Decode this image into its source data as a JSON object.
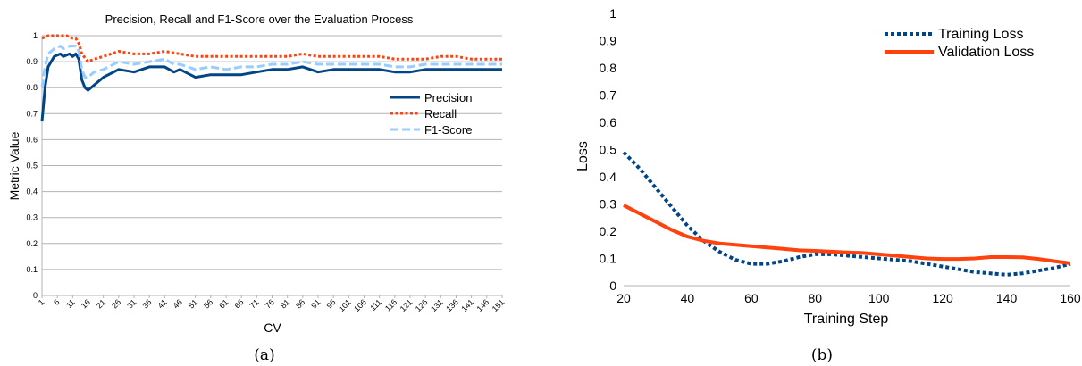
{
  "chart_data": [
    {
      "type": "line",
      "title": "Precision, Recall and F1-Score over the Evaluation Process",
      "xlabel": "CV",
      "ylabel": "Metric Value",
      "ylim": [
        0,
        1
      ],
      "yticks": [
        "0",
        "0.1",
        "0.2",
        "0.3",
        "0.4",
        "0.5",
        "0.6",
        "0.7",
        "0.8",
        "0.9",
        "1"
      ],
      "x_min": 1,
      "x_max": 151,
      "xtick_values": [
        1,
        6,
        11,
        16,
        21,
        26,
        31,
        36,
        41,
        46,
        51,
        56,
        61,
        66,
        71,
        76,
        81,
        86,
        91,
        96,
        101,
        106,
        111,
        116,
        121,
        126,
        131,
        136,
        141,
        146,
        151
      ],
      "grid": "horizontal",
      "legend_position": "right",
      "caption": "(a)",
      "series": [
        {
          "name": "Precision",
          "color": "#004586",
          "style": "solid",
          "points": [
            [
              1,
              0.67
            ],
            [
              2,
              0.8
            ],
            [
              3,
              0.88
            ],
            [
              5,
              0.92
            ],
            [
              7,
              0.93
            ],
            [
              8,
              0.92
            ],
            [
              10,
              0.93
            ],
            [
              11,
              0.92
            ],
            [
              12,
              0.93
            ],
            [
              13,
              0.91
            ],
            [
              14,
              0.83
            ],
            [
              15,
              0.8
            ],
            [
              16,
              0.79
            ],
            [
              18,
              0.81
            ],
            [
              21,
              0.84
            ],
            [
              26,
              0.87
            ],
            [
              31,
              0.86
            ],
            [
              36,
              0.88
            ],
            [
              41,
              0.88
            ],
            [
              44,
              0.86
            ],
            [
              46,
              0.87
            ],
            [
              51,
              0.84
            ],
            [
              56,
              0.85
            ],
            [
              61,
              0.85
            ],
            [
              66,
              0.85
            ],
            [
              71,
              0.86
            ],
            [
              76,
              0.87
            ],
            [
              81,
              0.87
            ],
            [
              86,
              0.88
            ],
            [
              91,
              0.86
            ],
            [
              96,
              0.87
            ],
            [
              101,
              0.87
            ],
            [
              106,
              0.87
            ],
            [
              111,
              0.87
            ],
            [
              116,
              0.86
            ],
            [
              121,
              0.86
            ],
            [
              126,
              0.87
            ],
            [
              131,
              0.87
            ],
            [
              136,
              0.87
            ],
            [
              141,
              0.87
            ],
            [
              146,
              0.87
            ],
            [
              151,
              0.87
            ]
          ]
        },
        {
          "name": "Recall",
          "color": "#ff420e",
          "style": "dotted",
          "points": [
            [
              1,
              0.99
            ],
            [
              3,
              1.0
            ],
            [
              6,
              1.0
            ],
            [
              9,
              1.0
            ],
            [
              11,
              0.99
            ],
            [
              12,
              0.99
            ],
            [
              13,
              0.97
            ],
            [
              14,
              0.93
            ],
            [
              16,
              0.9
            ],
            [
              18,
              0.91
            ],
            [
              21,
              0.92
            ],
            [
              26,
              0.94
            ],
            [
              31,
              0.93
            ],
            [
              36,
              0.93
            ],
            [
              41,
              0.94
            ],
            [
              46,
              0.93
            ],
            [
              51,
              0.92
            ],
            [
              56,
              0.92
            ],
            [
              61,
              0.92
            ],
            [
              66,
              0.92
            ],
            [
              71,
              0.92
            ],
            [
              76,
              0.92
            ],
            [
              81,
              0.92
            ],
            [
              86,
              0.93
            ],
            [
              91,
              0.92
            ],
            [
              96,
              0.92
            ],
            [
              101,
              0.92
            ],
            [
              106,
              0.92
            ],
            [
              111,
              0.92
            ],
            [
              116,
              0.91
            ],
            [
              121,
              0.91
            ],
            [
              126,
              0.91
            ],
            [
              131,
              0.92
            ],
            [
              136,
              0.92
            ],
            [
              141,
              0.91
            ],
            [
              146,
              0.91
            ],
            [
              151,
              0.91
            ]
          ]
        },
        {
          "name": "F1-Score",
          "color": "#99ccff",
          "style": "dashed",
          "points": [
            [
              1,
              0.8
            ],
            [
              2,
              0.88
            ],
            [
              3,
              0.93
            ],
            [
              5,
              0.95
            ],
            [
              7,
              0.96
            ],
            [
              8,
              0.95
            ],
            [
              10,
              0.96
            ],
            [
              12,
              0.96
            ],
            [
              13,
              0.94
            ],
            [
              14,
              0.87
            ],
            [
              15,
              0.84
            ],
            [
              16,
              0.84
            ],
            [
              18,
              0.86
            ],
            [
              21,
              0.87
            ],
            [
              26,
              0.9
            ],
            [
              31,
              0.89
            ],
            [
              36,
              0.9
            ],
            [
              41,
              0.91
            ],
            [
              44,
              0.89
            ],
            [
              46,
              0.89
            ],
            [
              51,
              0.87
            ],
            [
              56,
              0.88
            ],
            [
              61,
              0.87
            ],
            [
              66,
              0.88
            ],
            [
              71,
              0.88
            ],
            [
              76,
              0.89
            ],
            [
              81,
              0.89
            ],
            [
              86,
              0.9
            ],
            [
              91,
              0.89
            ],
            [
              96,
              0.89
            ],
            [
              101,
              0.89
            ],
            [
              106,
              0.89
            ],
            [
              111,
              0.89
            ],
            [
              116,
              0.88
            ],
            [
              121,
              0.88
            ],
            [
              126,
              0.89
            ],
            [
              131,
              0.89
            ],
            [
              136,
              0.89
            ],
            [
              141,
              0.89
            ],
            [
              146,
              0.89
            ],
            [
              151,
              0.89
            ]
          ]
        }
      ]
    },
    {
      "type": "line",
      "title": "",
      "xlabel": "Training Step",
      "ylabel": "Loss",
      "ylim": [
        0,
        1
      ],
      "xlim": [
        20,
        160
      ],
      "yticks": [
        "0",
        "0.1",
        "0.2",
        "0.3",
        "0.4",
        "0.5",
        "0.6",
        "0.7",
        "0.8",
        "0.9",
        "1"
      ],
      "xticks": [
        "20",
        "40",
        "60",
        "80",
        "100",
        "120",
        "140",
        "160"
      ],
      "grid": "none",
      "legend_position": "top-right",
      "caption": "(b)",
      "series": [
        {
          "name": "Training Loss",
          "color": "#004586",
          "style": "dotted",
          "points": [
            [
              20,
              0.49
            ],
            [
              25,
              0.43
            ],
            [
              30,
              0.36
            ],
            [
              35,
              0.29
            ],
            [
              40,
              0.22
            ],
            [
              45,
              0.165
            ],
            [
              50,
              0.125
            ],
            [
              55,
              0.095
            ],
            [
              60,
              0.08
            ],
            [
              65,
              0.08
            ],
            [
              70,
              0.09
            ],
            [
              75,
              0.105
            ],
            [
              80,
              0.115
            ],
            [
              85,
              0.115
            ],
            [
              90,
              0.11
            ],
            [
              95,
              0.105
            ],
            [
              100,
              0.1
            ],
            [
              105,
              0.095
            ],
            [
              110,
              0.09
            ],
            [
              115,
              0.08
            ],
            [
              120,
              0.07
            ],
            [
              125,
              0.06
            ],
            [
              130,
              0.05
            ],
            [
              135,
              0.045
            ],
            [
              140,
              0.04
            ],
            [
              145,
              0.045
            ],
            [
              150,
              0.055
            ],
            [
              155,
              0.065
            ],
            [
              160,
              0.08
            ]
          ]
        },
        {
          "name": "Validation Loss",
          "color": "#ff420e",
          "style": "solid",
          "points": [
            [
              20,
              0.295
            ],
            [
              25,
              0.265
            ],
            [
              30,
              0.235
            ],
            [
              35,
              0.205
            ],
            [
              40,
              0.18
            ],
            [
              45,
              0.165
            ],
            [
              50,
              0.155
            ],
            [
              55,
              0.15
            ],
            [
              60,
              0.145
            ],
            [
              65,
              0.14
            ],
            [
              70,
              0.135
            ],
            [
              75,
              0.13
            ],
            [
              80,
              0.128
            ],
            [
              85,
              0.125
            ],
            [
              90,
              0.122
            ],
            [
              95,
              0.12
            ],
            [
              100,
              0.115
            ],
            [
              105,
              0.11
            ],
            [
              110,
              0.105
            ],
            [
              115,
              0.1
            ],
            [
              120,
              0.098
            ],
            [
              125,
              0.098
            ],
            [
              130,
              0.1
            ],
            [
              135,
              0.105
            ],
            [
              140,
              0.105
            ],
            [
              145,
              0.104
            ],
            [
              150,
              0.098
            ],
            [
              155,
              0.09
            ],
            [
              160,
              0.082
            ]
          ]
        }
      ]
    }
  ]
}
